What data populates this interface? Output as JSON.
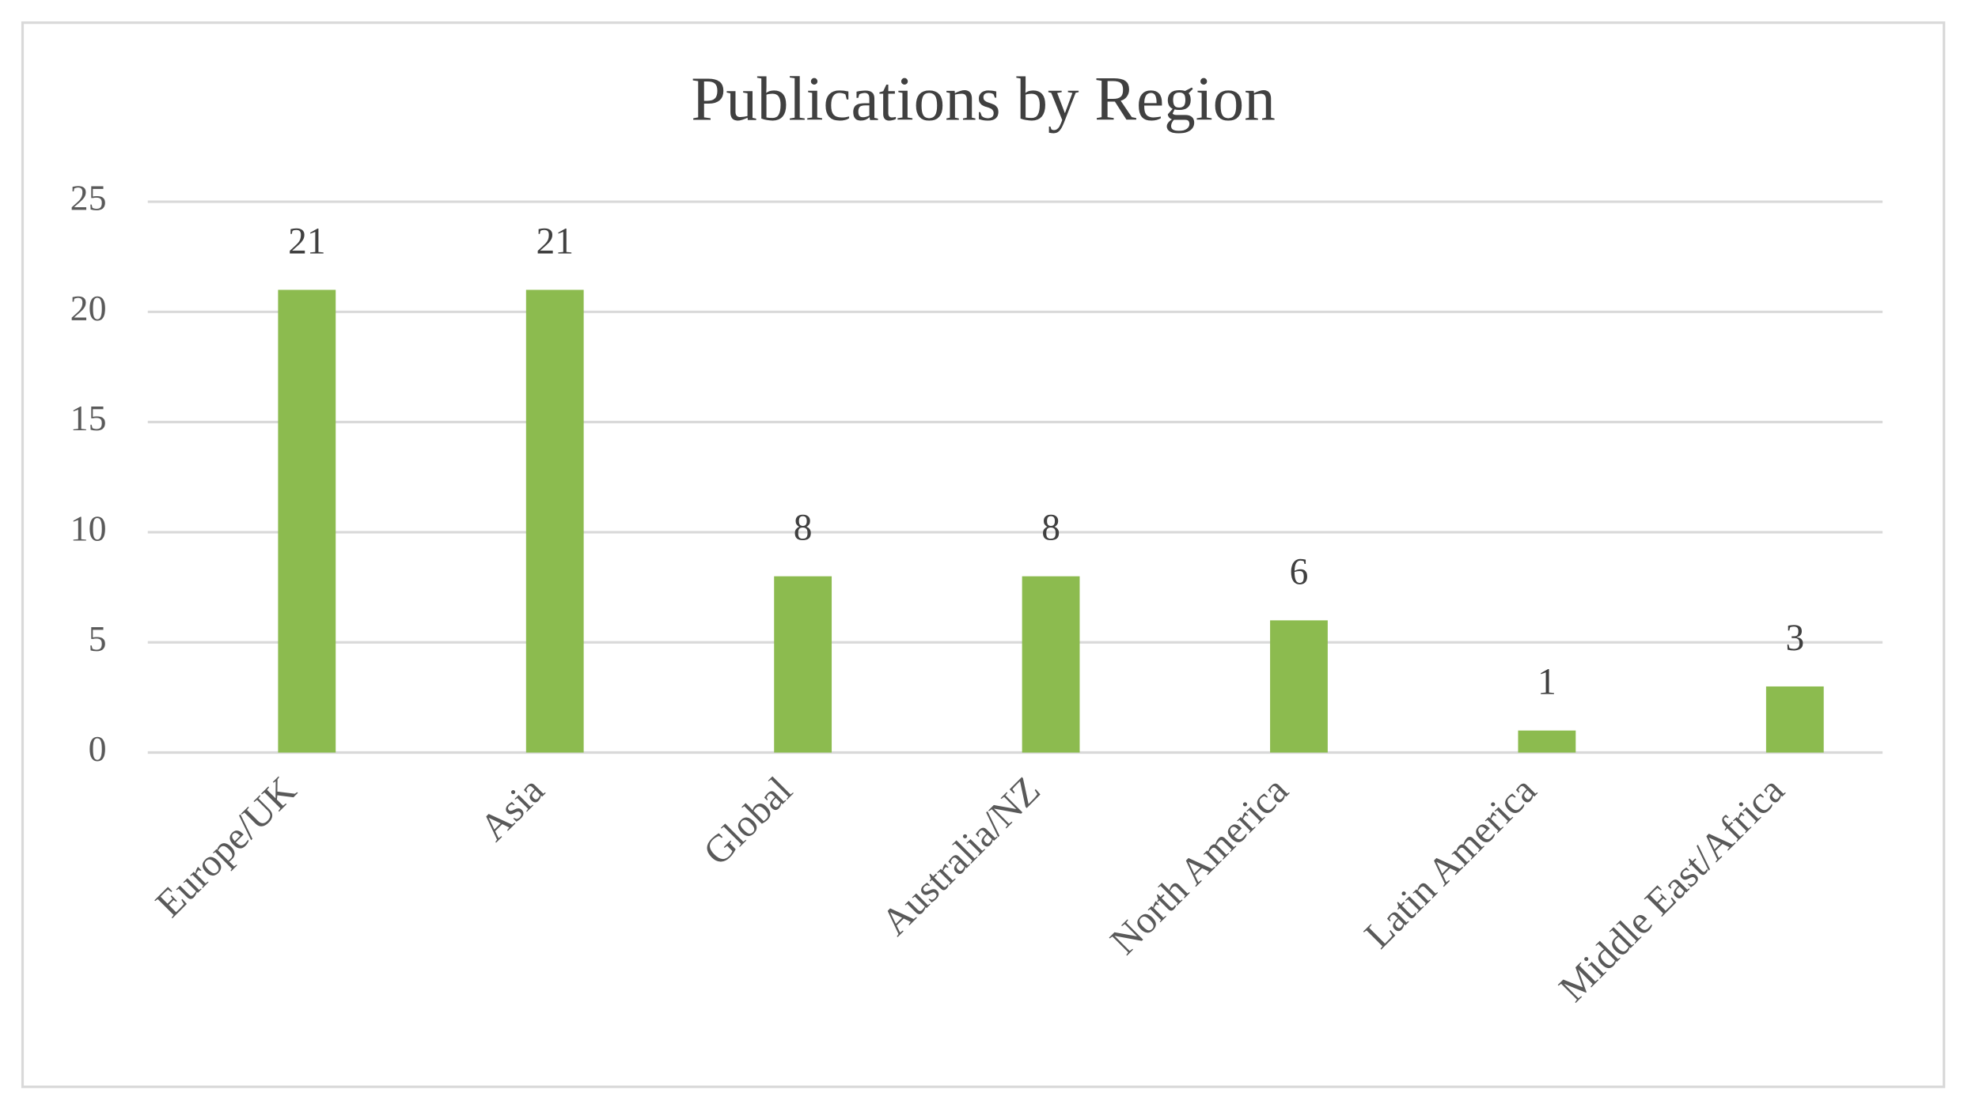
{
  "chart_data": {
    "type": "bar",
    "title": "Publications by Region",
    "categories": [
      "Europe/UK",
      "Asia",
      "Global",
      "Australia/NZ",
      "North America",
      "Latin America",
      "Middle East/Africa"
    ],
    "values": [
      21,
      21,
      8,
      8,
      6,
      1,
      3
    ],
    "color": "#8cbb4f",
    "ylim": [
      0,
      25
    ],
    "yticks": [
      0,
      5,
      10,
      15,
      20,
      25
    ],
    "grid": true,
    "data_labels": true
  }
}
